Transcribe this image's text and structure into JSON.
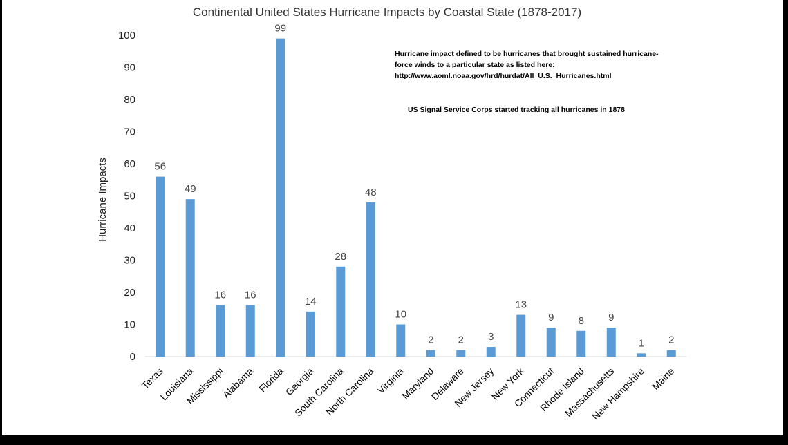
{
  "chart_data": {
    "type": "bar",
    "title": "Continental United States Hurricane Impacts by Coastal State (1878-2017)",
    "xlabel": "",
    "ylabel": "Hurricane Impacts",
    "ylim": [
      0,
      100
    ],
    "yticks": [
      0,
      10,
      20,
      30,
      40,
      50,
      60,
      70,
      80,
      90,
      100
    ],
    "grid": false,
    "bar_color": "#5b9bd5",
    "categories": [
      "Texas",
      "Louisiana",
      "Mississippi",
      "Alabama",
      "Florida",
      "Georgia",
      "South Carolina",
      "North Carolina",
      "Virginia",
      "Maryland",
      "Delaware",
      "New Jersey",
      "New York",
      "Connecticut",
      "Rhode Island",
      "Massachusetts",
      "New Hampshire",
      "Maine"
    ],
    "values": [
      56,
      49,
      16,
      16,
      99,
      14,
      28,
      48,
      10,
      2,
      2,
      3,
      13,
      9,
      8,
      9,
      1,
      2
    ],
    "annotations": {
      "definition_lines": [
        "Hurricane impact defined to be hurricanes that brought sustained hurricane-",
        "force winds to a particular state as listed here:",
        "http://www.aoml.noaa.gov/hrd/hurdat/All_U.S._Hurricanes.html"
      ],
      "tracking_note": "US Signal Service Corps started tracking all hurricanes in 1878"
    }
  }
}
